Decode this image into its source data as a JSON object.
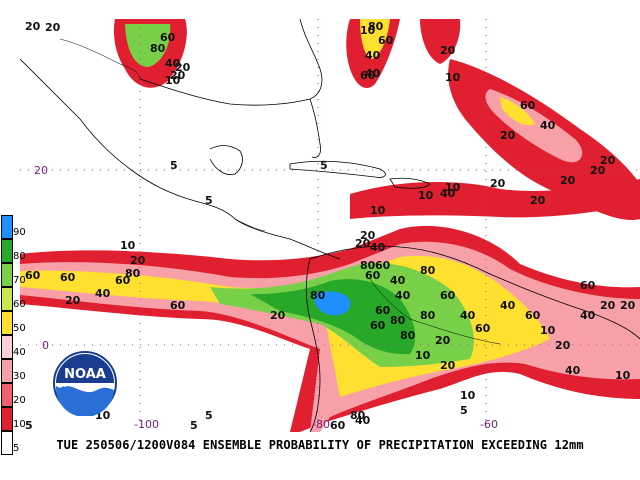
{
  "map": {
    "lat_labels": [
      {
        "text": "20"
      },
      {
        "text": "0"
      }
    ],
    "lon_labels": [
      {
        "text": "-100"
      },
      {
        "text": "-80"
      },
      {
        "text": "-60"
      }
    ],
    "contour_labels": [
      "20",
      "20",
      "80",
      "60",
      "40",
      "20",
      "10",
      "20",
      "10",
      "80",
      "60",
      "40",
      "60",
      "40",
      "20",
      "10",
      "20",
      "20",
      "20",
      "20",
      "40",
      "60",
      "20",
      "40",
      "10",
      "20",
      "10",
      "20",
      "40",
      "60",
      "80",
      "20",
      "60",
      "40",
      "60",
      "80",
      "40",
      "60",
      "80",
      "20",
      "10",
      "20",
      "40",
      "60",
      "80",
      "60",
      "80",
      "60",
      "60",
      "60",
      "80",
      "60",
      "40",
      "20",
      "80",
      "40",
      "60",
      "20",
      "10",
      "40",
      "60",
      "20",
      "40",
      "20",
      "10",
      "5",
      "5",
      "5",
      "5",
      "5",
      "5",
      "5",
      "10",
      "20",
      "10",
      "20",
      "40",
      "60",
      "80",
      "10",
      "10"
    ],
    "colors": {
      "p5": "#ffffff",
      "p10": "#a52a2a",
      "p20": "#e8314a",
      "p30": "#f46d5a",
      "p40": "#fca4a8",
      "p50": "#ffd700",
      "p60": "#f0e010",
      "p70": "#b8e040",
      "p80": "#3cc03c",
      "p90": "#1e90ff",
      "grid": "#b040b0",
      "axis_label": "#7a1a7a"
    }
  },
  "colorbar": {
    "labels": [
      "90",
      "80",
      "70",
      "60",
      "50",
      "40",
      "30",
      "20",
      "10",
      "5"
    ],
    "colors": [
      "#1e90ff",
      "#28a828",
      "#78d048",
      "#c8e850",
      "#ffe030",
      "#fcd0d8",
      "#f7a0a8",
      "#f06070",
      "#e02030",
      "#ffffff"
    ]
  },
  "logo": {
    "text": "NOAA"
  },
  "footer": {
    "title": "TUE 250506/1200V084  ENSEMBLE PROBABILITY OF PRECIPITATION EXCEEDING 12mm"
  }
}
